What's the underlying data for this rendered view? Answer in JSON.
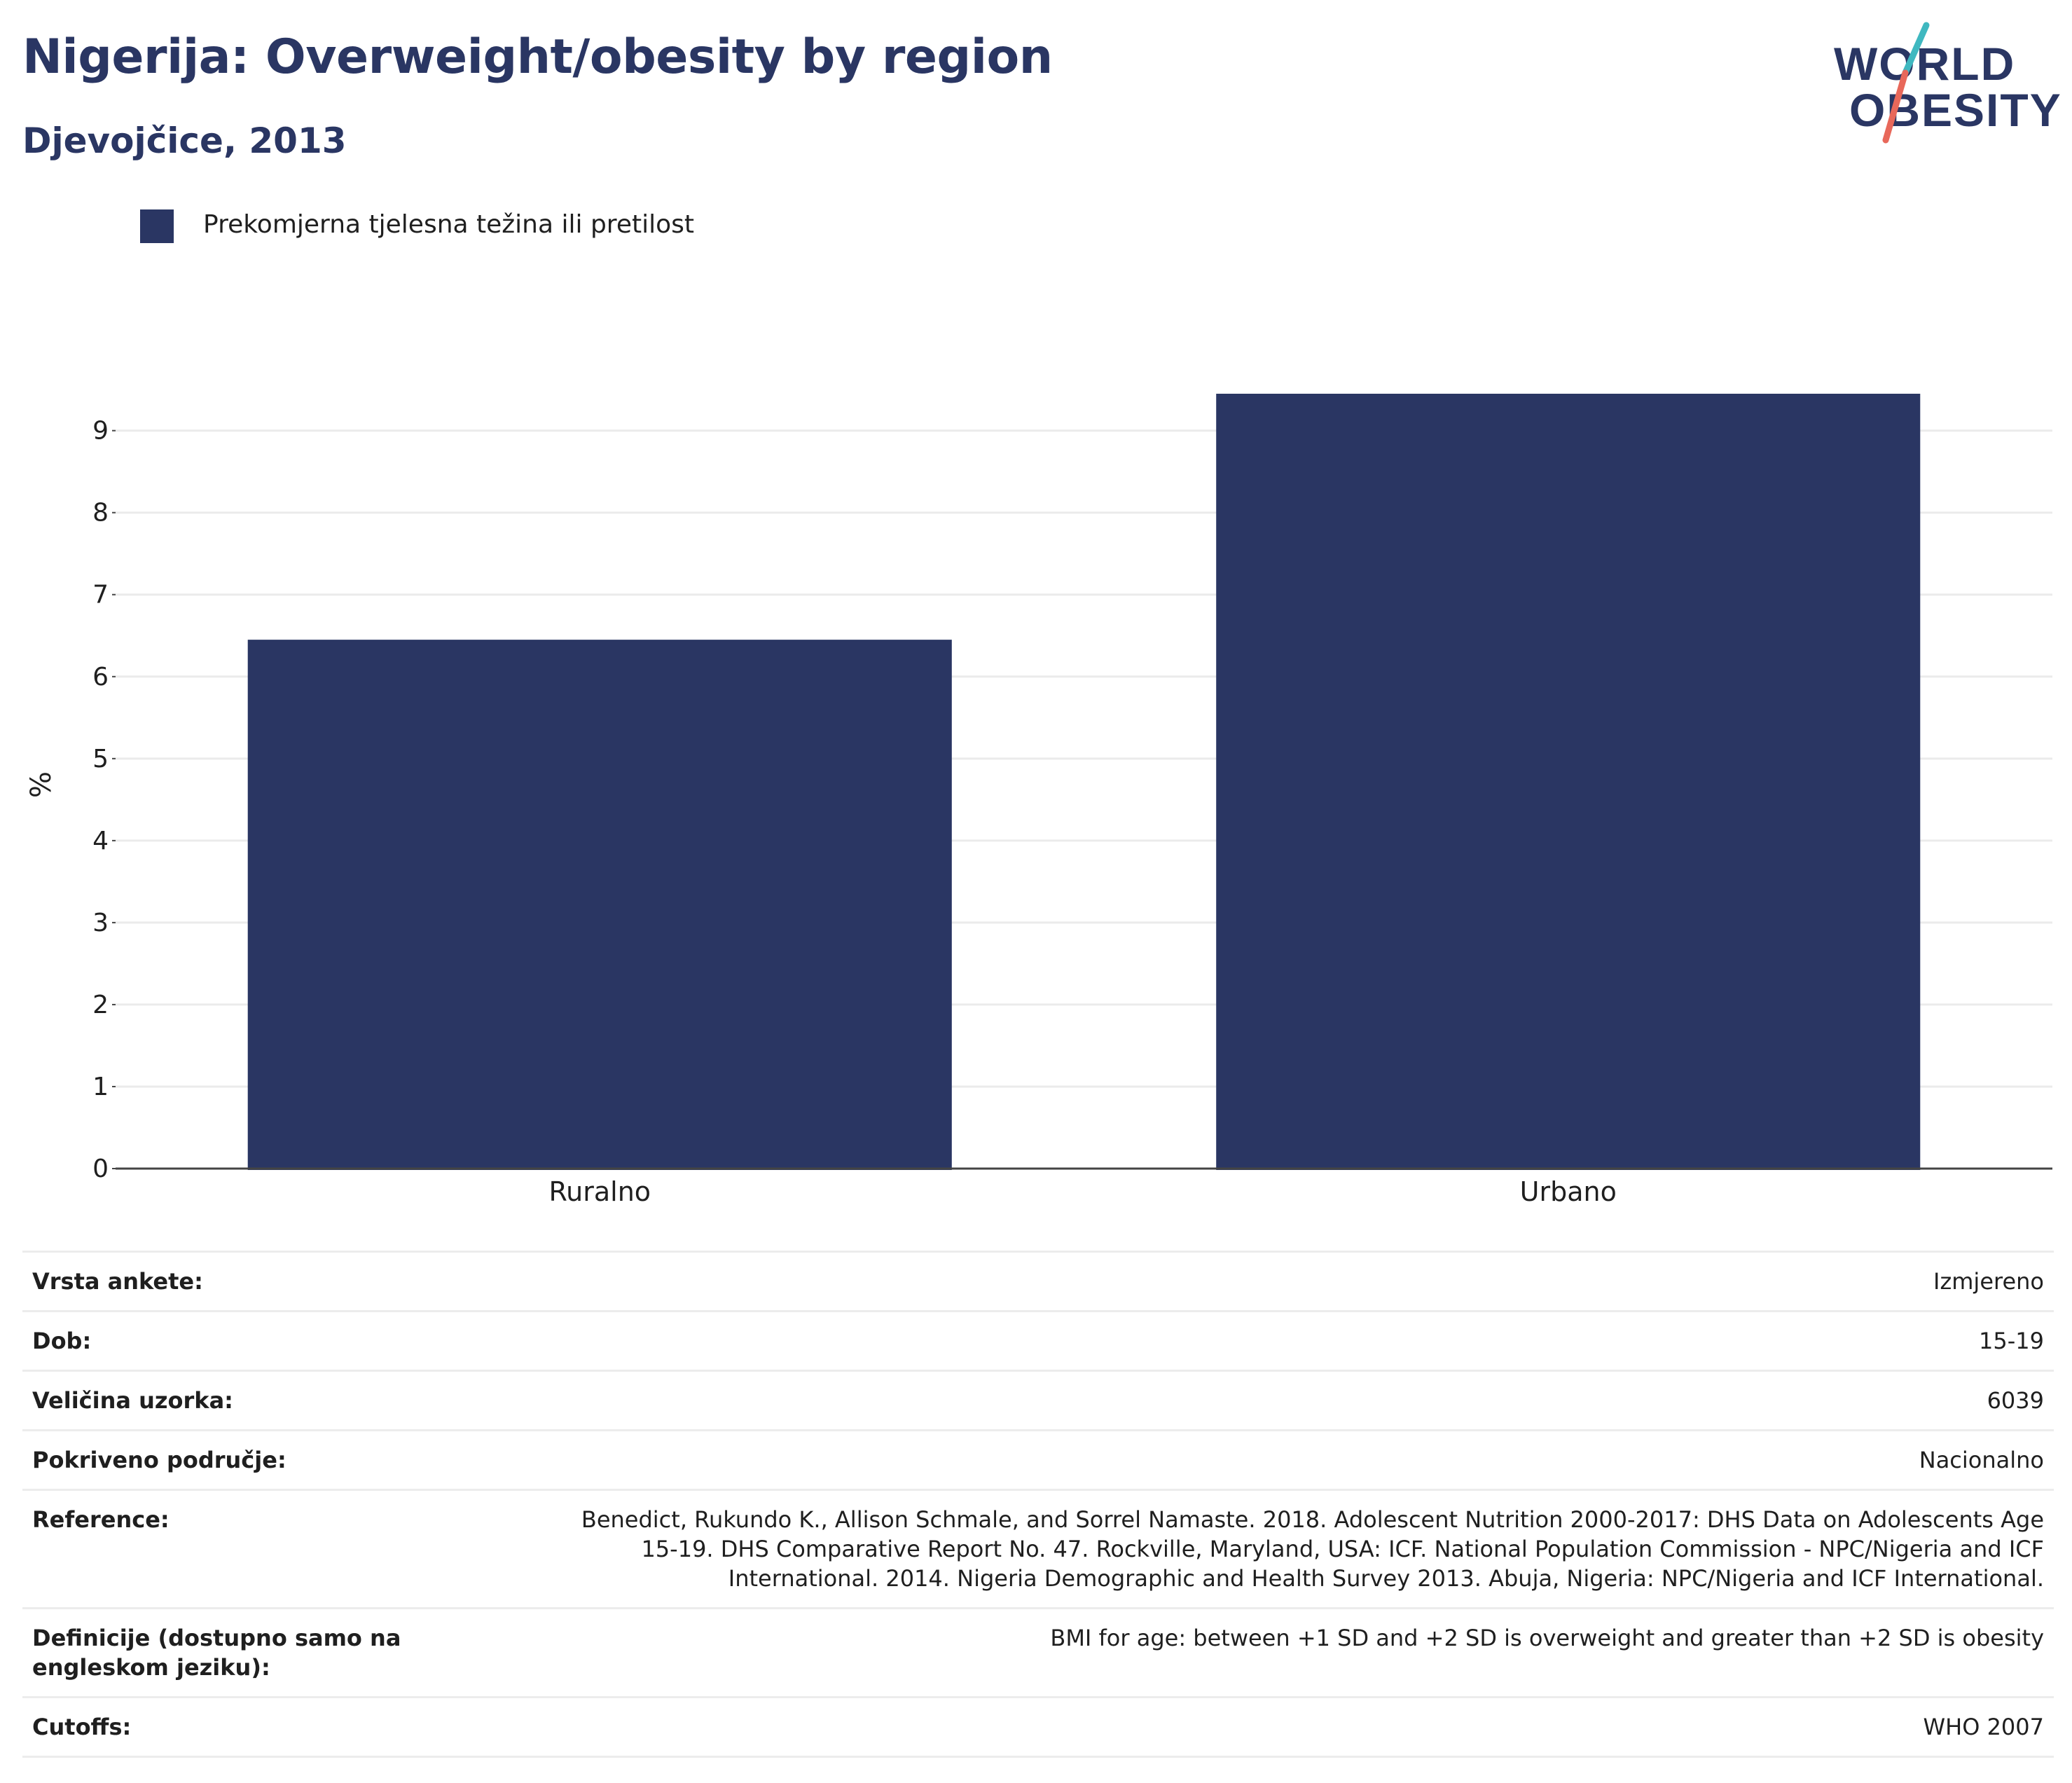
{
  "header": {
    "title": "Nigerija: Overweight/obesity by region",
    "subtitle": "Djevojčice, 2013"
  },
  "logo": {
    "line1": "WORLD",
    "line2": "OBESITY",
    "colors": {
      "text": "#2a3663",
      "slash_top": "#3fb8c0",
      "slash_bottom": "#e8685a"
    }
  },
  "legend": {
    "label": "Prekomjerna tjelesna težina ili pretilost",
    "color": "#2a3663"
  },
  "chart_data": {
    "type": "bar",
    "categories": [
      "Ruralno",
      "Urbano"
    ],
    "series": [
      {
        "name": "Prekomjerna tjelesna težina ili pretilost",
        "values": [
          6.45,
          9.45
        ],
        "color": "#2a3663"
      }
    ],
    "ylabel": "%",
    "xlabel": "",
    "yticks": [
      0,
      1,
      2,
      3,
      4,
      5,
      6,
      7,
      8,
      9
    ],
    "ylim": [
      0,
      9.45
    ],
    "grid": true,
    "legend_position": "top-left"
  },
  "info": {
    "rows": [
      {
        "key": "Vrsta ankete:",
        "value": "Izmjereno"
      },
      {
        "key": "Dob:",
        "value": "15-19"
      },
      {
        "key": "Veličina uzorka:",
        "value": "6039"
      },
      {
        "key": "Pokriveno područje:",
        "value": "Nacionalno"
      },
      {
        "key": "Reference:",
        "value": "Benedict, Rukundo K., Allison Schmale, and Sorrel Namaste. 2018. Adolescent Nutrition 2000-2017: DHS Data on Adolescents Age 15-19. DHS Comparative Report No. 47. Rockville, Maryland, USA: ICF. National Population Commission - NPC/Nigeria and ICF International. 2014. Nigeria Demographic and Health Survey 2013. Abuja, Nigeria: NPC/Nigeria and ICF International."
      },
      {
        "key": "Definicije (dostupno samo na engleskom jeziku):",
        "value": "BMI for age: between +1 SD and +2 SD is overweight and greater than +2 SD is obesity"
      },
      {
        "key": "Cutoffs:",
        "value": "WHO 2007"
      }
    ]
  }
}
